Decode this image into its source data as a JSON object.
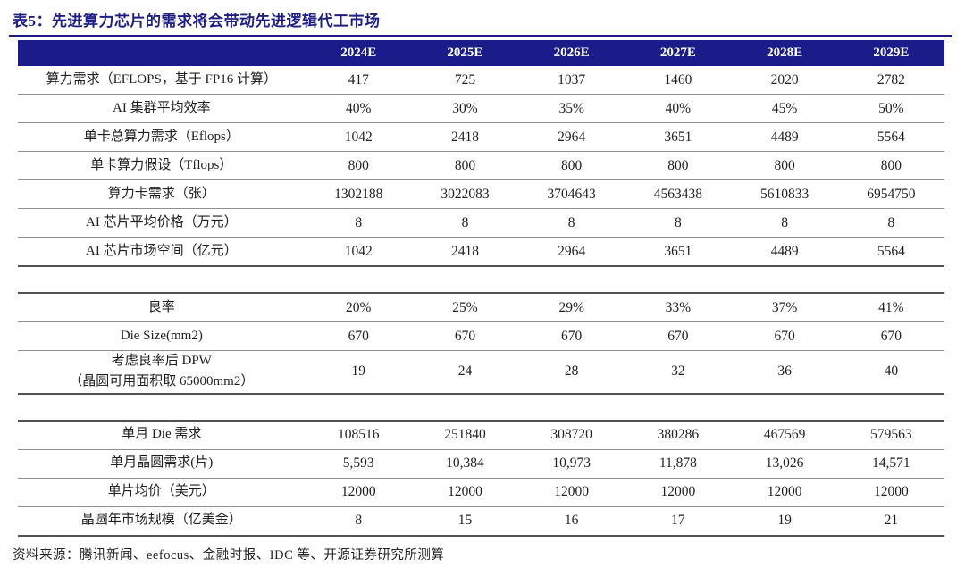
{
  "title": "表5：先进算力芯片的需求将会带动先进逻辑代工市场",
  "source_note": "资料来源：腾讯新闻、eefocus、金融时报、IDC 等、开源证券研究所测算",
  "colors": {
    "header_navy": "#1b1b8a",
    "title_navy": "#1e1e85",
    "row_line_gray": "#8f8f8f",
    "section_line_gray": "#515151"
  },
  "table": {
    "header": [
      "",
      "2024E",
      "2025E",
      "2026E",
      "2027E",
      "2028E",
      "2029E"
    ],
    "rows": [
      {
        "label": "算力需求（EFLOPS，基于 FP16 计算）",
        "values": [
          "417",
          "725",
          "1037",
          "1460",
          "2020",
          "2782"
        ]
      },
      {
        "label": "AI 集群平均效率",
        "values": [
          "40%",
          "30%",
          "35%",
          "40%",
          "45%",
          "50%"
        ]
      },
      {
        "label": "单卡总算力需求（Eflops）",
        "values": [
          "1042",
          "2418",
          "2964",
          "3651",
          "4489",
          "5564"
        ]
      },
      {
        "label": "单卡算力假设（Tflops）",
        "values": [
          "800",
          "800",
          "800",
          "800",
          "800",
          "800"
        ]
      },
      {
        "label": "算力卡需求（张）",
        "values": [
          "1302188",
          "3022083",
          "3704643",
          "4563438",
          "5610833",
          "6954750"
        ]
      },
      {
        "label": "AI 芯片平均价格（万元）",
        "values": [
          "8",
          "8",
          "8",
          "8",
          "8",
          "8"
        ]
      },
      {
        "label": "AI 芯片市场空间（亿元）",
        "values": [
          "1042",
          "2418",
          "2964",
          "3651",
          "4489",
          "5564"
        ],
        "section_end": true
      },
      {
        "spacer": true
      },
      {
        "label": "良率",
        "values": [
          "20%",
          "25%",
          "29%",
          "33%",
          "37%",
          "41%"
        ]
      },
      {
        "label": "Die Size(mm2)",
        "values": [
          "670",
          "670",
          "670",
          "670",
          "670",
          "670"
        ]
      },
      {
        "label": "考虑良率后 DPW",
        "label2": "（晶圆可用面积取 65000mm2）",
        "values": [
          "19",
          "24",
          "28",
          "32",
          "36",
          "40"
        ],
        "section_end": true
      },
      {
        "spacer": true
      },
      {
        "label": "单月 Die 需求",
        "values": [
          "108516",
          "251840",
          "308720",
          "380286",
          "467569",
          "579563"
        ]
      },
      {
        "label": "单月晶圆需求(片)",
        "values": [
          "5,593",
          "10,384",
          "10,973",
          "11,878",
          "13,026",
          "14,571"
        ]
      },
      {
        "label": "单片均价（美元）",
        "values": [
          "12000",
          "12000",
          "12000",
          "12000",
          "12000",
          "12000"
        ]
      },
      {
        "label": "晶圆年市场规模（亿美金）",
        "values": [
          "8",
          "15",
          "16",
          "17",
          "19",
          "21"
        ],
        "section_end": true
      }
    ]
  }
}
